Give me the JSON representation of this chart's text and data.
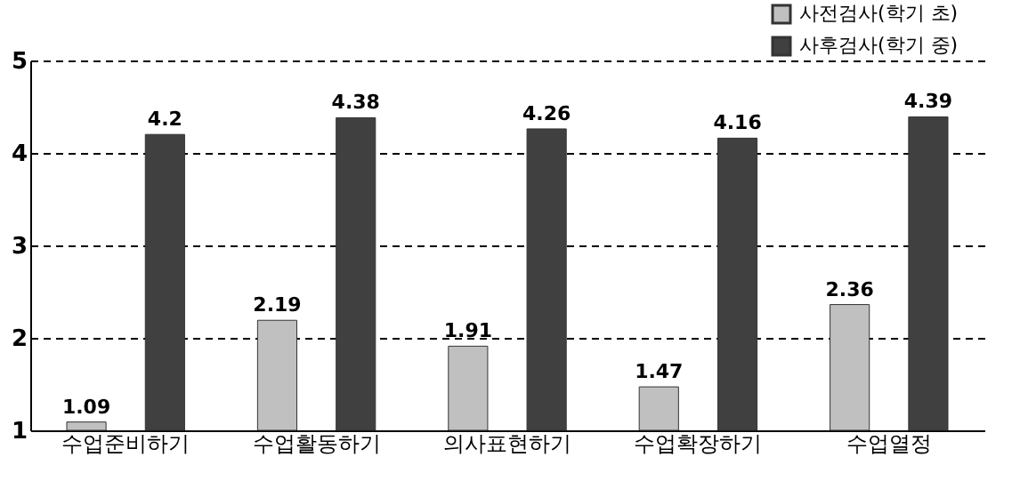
{
  "chart_data": {
    "type": "bar",
    "categories": [
      "수업준비하기",
      "수업활동하기",
      "의사표현하기",
      "수업확장하기",
      "수업열정"
    ],
    "series": [
      {
        "name": "사전검사(학기 초)",
        "color": "#c0c0c0",
        "values": [
          1.09,
          2.19,
          1.91,
          1.47,
          2.36
        ]
      },
      {
        "name": "사후검사(학기 중)",
        "color": "#404040",
        "values": [
          4.2,
          4.38,
          4.26,
          4.16,
          4.39
        ]
      }
    ],
    "ylim": [
      1,
      5
    ],
    "yticks": [
      1,
      2,
      3,
      4,
      5
    ],
    "grid": "y",
    "legend": "top right",
    "data_labels": true
  }
}
